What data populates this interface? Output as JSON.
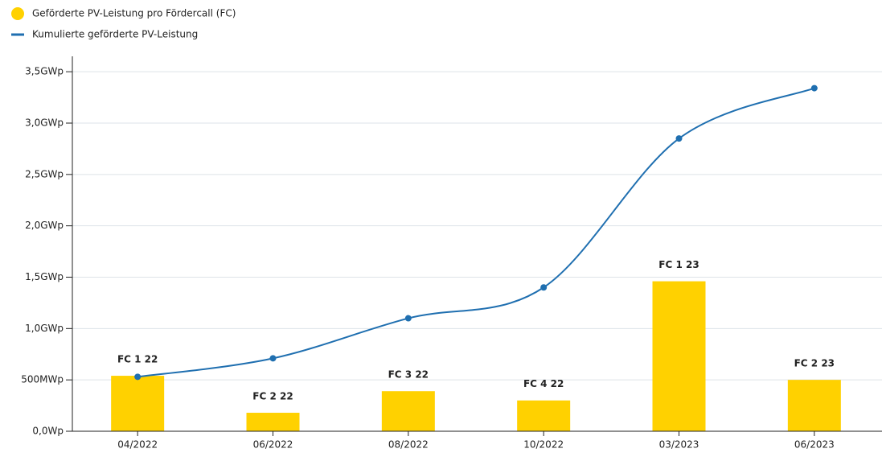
{
  "chart_data": {
    "type": "bar_line",
    "categories": [
      "04/2022",
      "06/2022",
      "08/2022",
      "10/2022",
      "03/2023",
      "06/2023"
    ],
    "series": [
      {
        "name": "Geförderte PV-Leistung pro Fördercall (FC)",
        "type": "bar",
        "color": "#ffd100",
        "values": [
          0.54,
          0.18,
          0.39,
          0.3,
          1.46,
          0.5
        ],
        "bar_labels": [
          "FC 1 22",
          "FC 2 22",
          "FC 3 22",
          "FC 4 22",
          "FC 1 23",
          "FC 2 23"
        ]
      },
      {
        "name": "Kumulierte geförderte PV-Leistung",
        "type": "line",
        "color": "#1f6fb0",
        "values": [
          0.53,
          0.71,
          1.1,
          1.4,
          2.85,
          3.34
        ]
      }
    ],
    "ylim": [
      0,
      3.65
    ],
    "yticks": [
      {
        "value": 0,
        "label": "0,0Wp"
      },
      {
        "value": 0.5,
        "label": "500MWp"
      },
      {
        "value": 1,
        "label": "1,0GWp"
      },
      {
        "value": 1.5,
        "label": "1,5GWp"
      },
      {
        "value": 2,
        "label": "2,0GWp"
      },
      {
        "value": 2.5,
        "label": "2,5GWp"
      },
      {
        "value": 3,
        "label": "3,0GWp"
      },
      {
        "value": 3.5,
        "label": "3,5GWp"
      }
    ],
    "grid": true
  }
}
